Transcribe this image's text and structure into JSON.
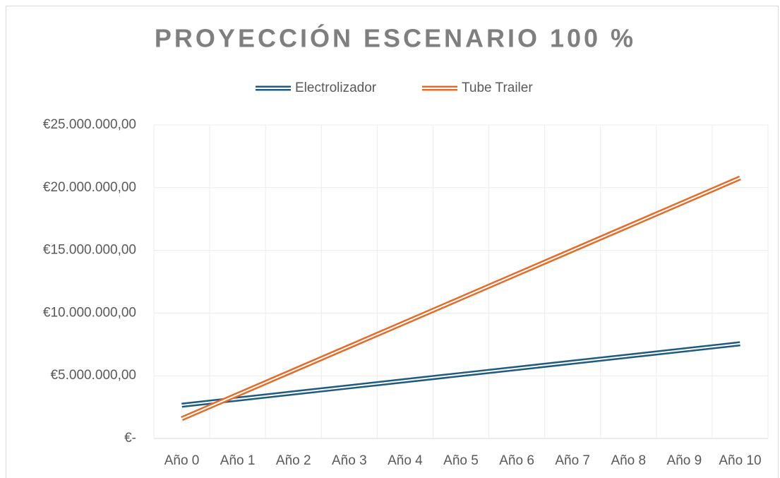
{
  "chart_data": {
    "type": "line",
    "title": "PROYECCIÓN ESCENARIO 100 %",
    "categories": [
      "Año 0",
      "Año 1",
      "Año 2",
      "Año 3",
      "Año 4",
      "Año 5",
      "Año 6",
      "Año 7",
      "Año 8",
      "Año 9",
      "Año 10"
    ],
    "series": [
      {
        "name": "Electrolizador",
        "color": "#1f5b7e",
        "values": [
          2650000,
          3140000,
          3630000,
          4120000,
          4610000,
          5100000,
          5590000,
          6080000,
          6570000,
          7060000,
          7550000
        ]
      },
      {
        "name": "Tube Trailer",
        "color": "#e46c2a",
        "values": [
          1580000,
          3500000,
          5420000,
          7340000,
          9260000,
          11180000,
          13100000,
          15020000,
          16940000,
          18860000,
          20780000
        ]
      }
    ],
    "ylim": [
      0,
      25000000
    ],
    "yticks": [
      {
        "value": 0,
        "label": "€-"
      },
      {
        "value": 5000000,
        "label": "€5.000.000,00"
      },
      {
        "value": 10000000,
        "label": "€10.000.000,00"
      },
      {
        "value": 15000000,
        "label": "€15.000.000,00"
      },
      {
        "value": 20000000,
        "label": "€20.000.000,00"
      },
      {
        "value": 25000000,
        "label": "€25.000.000,00"
      }
    ],
    "grid": true,
    "legend": "top"
  }
}
